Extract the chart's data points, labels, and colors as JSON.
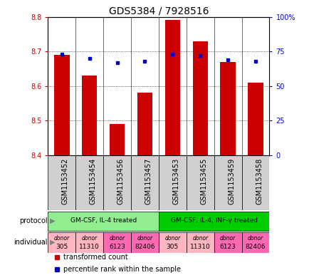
{
  "title": "GDS5384 / 7928516",
  "samples": [
    "GSM1153452",
    "GSM1153454",
    "GSM1153456",
    "GSM1153457",
    "GSM1153453",
    "GSM1153455",
    "GSM1153459",
    "GSM1153458"
  ],
  "red_values": [
    8.69,
    8.63,
    8.49,
    8.58,
    8.79,
    8.73,
    8.67,
    8.61
  ],
  "blue_values": [
    73,
    70,
    67,
    68,
    73,
    72,
    69,
    68
  ],
  "ylim_left": [
    8.4,
    8.8
  ],
  "ylim_right": [
    0,
    100
  ],
  "yticks_left": [
    8.4,
    8.5,
    8.6,
    8.7,
    8.8
  ],
  "yticks_right": [
    0,
    25,
    50,
    75,
    100
  ],
  "ytick_labels_right": [
    "0",
    "25",
    "50",
    "75",
    "100%"
  ],
  "protocol_groups": [
    {
      "label": "GM-CSF, IL-4 treated",
      "start": 0,
      "end": 3,
      "color": "#90EE90"
    },
    {
      "label": "GM-CSF, IL-4, INF-γ treated",
      "start": 4,
      "end": 7,
      "color": "#00CC00"
    }
  ],
  "individual_colors": [
    "#FFB6C1",
    "#FFB6C1",
    "#FF69B4",
    "#FF69B4",
    "#FFB6C1",
    "#FFB6C1",
    "#FF69B4",
    "#FF69B4"
  ],
  "individual_labels": [
    "donor\n305",
    "donor\n11310",
    "donor\n6123",
    "donor\n82406",
    "donor\n305",
    "donor\n11310",
    "donor\n6123",
    "donor\n82406"
  ],
  "bar_color": "#CC0000",
  "marker_color": "#0000CC",
  "bg_color": "#FFFFFF",
  "title_fontsize": 10,
  "tick_fontsize": 7,
  "label_fontsize": 7,
  "sample_fontsize": 7
}
